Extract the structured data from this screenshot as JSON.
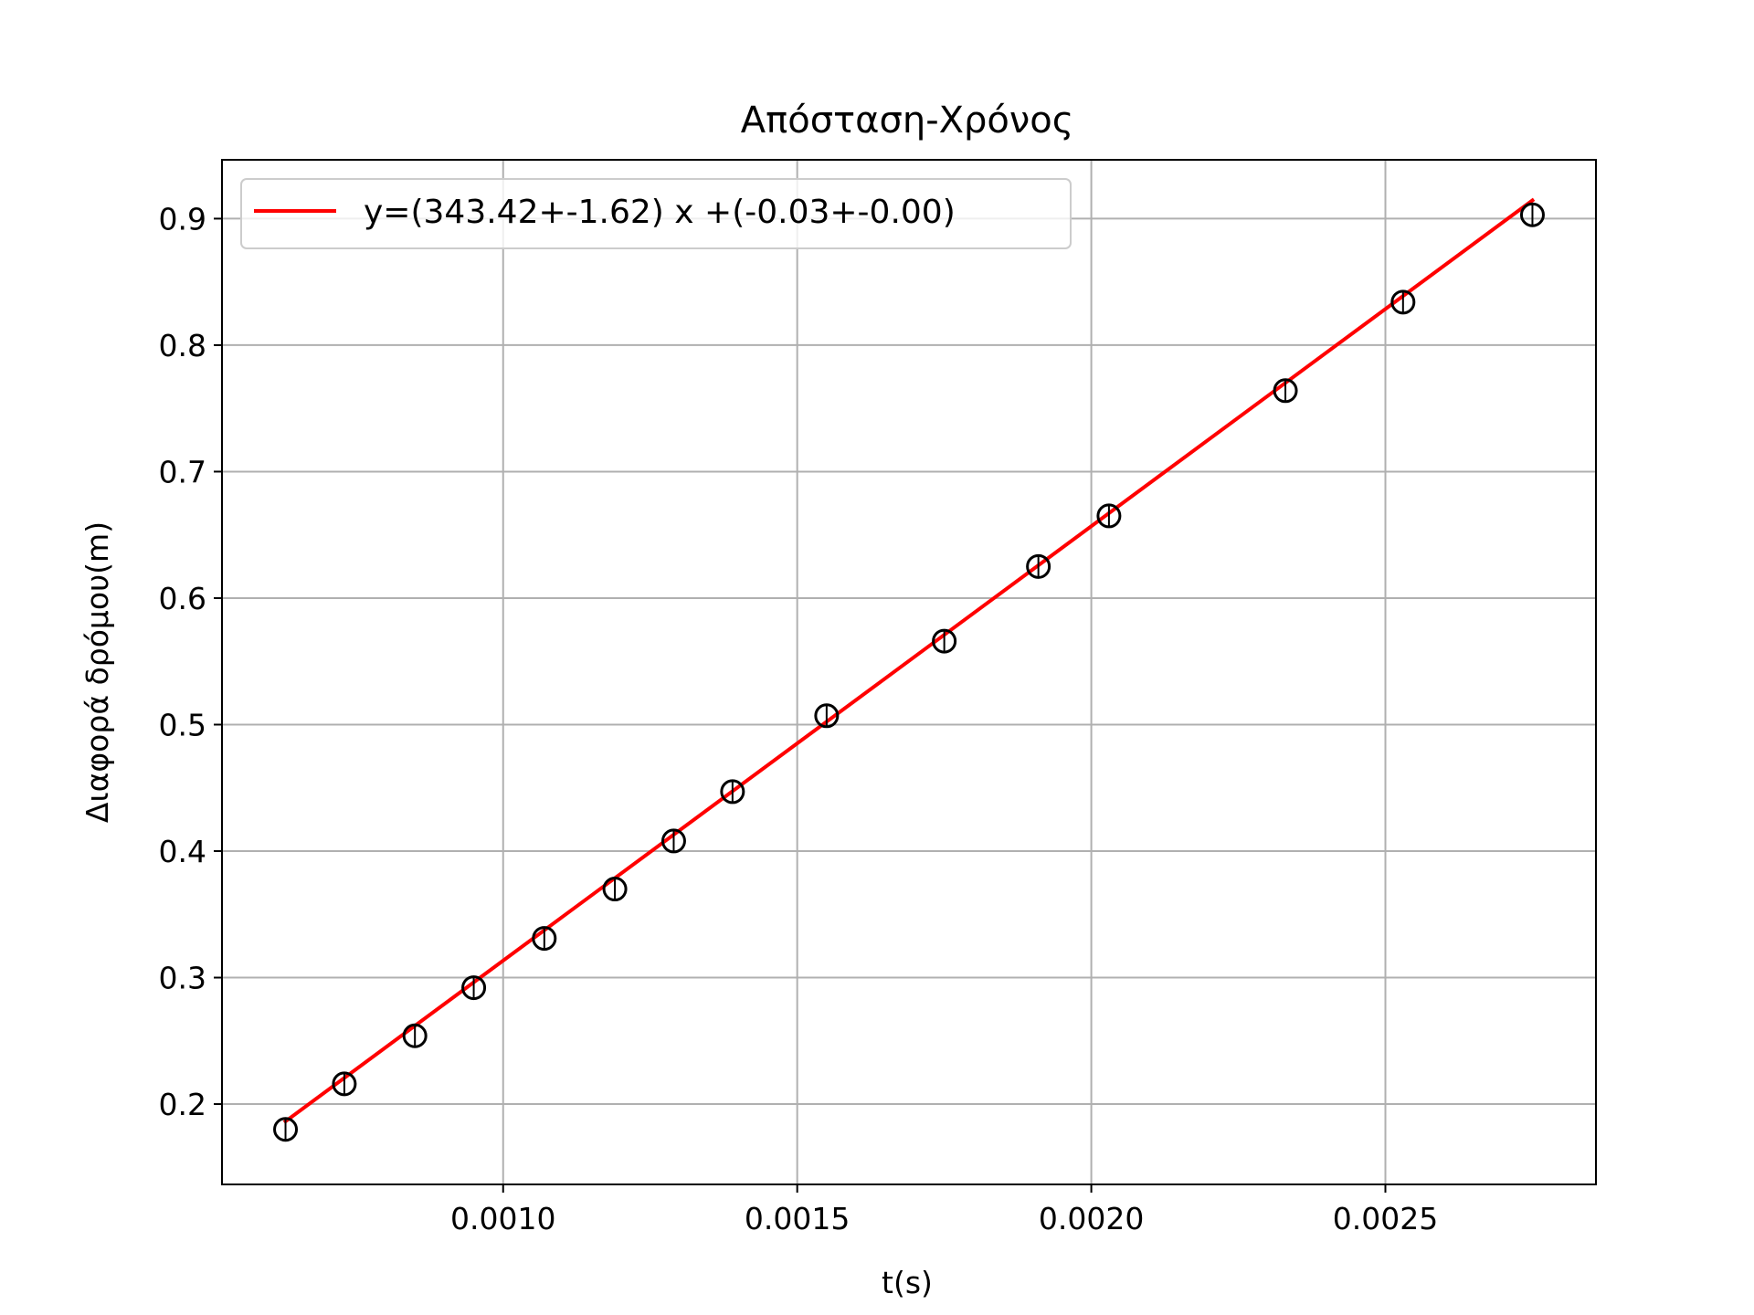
{
  "chart_data": {
    "type": "scatter",
    "title": "Απόσταση-Χρόνος",
    "xlabel": "t(s)",
    "ylabel": "Διαφορά δρόμου(m)",
    "xlim": [
      0.000522,
      0.002858
    ],
    "ylim": [
      0.1365,
      0.9465
    ],
    "grid": true,
    "x_ticks": [
      0.001,
      0.0015,
      0.002,
      0.0025
    ],
    "x_tick_labels": [
      "0.0010",
      "0.0015",
      "0.0020",
      "0.0025"
    ],
    "y_ticks": [
      0.2,
      0.3,
      0.4,
      0.5,
      0.6,
      0.7,
      0.8,
      0.9
    ],
    "y_tick_labels": [
      "0.2",
      "0.3",
      "0.4",
      "0.5",
      "0.6",
      "0.7",
      "0.8",
      "0.9"
    ],
    "legend_position": "upper-left",
    "series": [
      {
        "kind": "points",
        "marker": "open-circle",
        "color": "#000000",
        "x": [
          0.00063,
          0.00073,
          0.00085,
          0.00095,
          0.00107,
          0.00119,
          0.00129,
          0.00139,
          0.00155,
          0.00175,
          0.00191,
          0.00203,
          0.00233,
          0.00253,
          0.00275
        ],
        "y": [
          0.18,
          0.216,
          0.254,
          0.292,
          0.331,
          0.37,
          0.408,
          0.447,
          0.507,
          0.566,
          0.625,
          0.665,
          0.764,
          0.834,
          0.903
        ]
      },
      {
        "kind": "line",
        "name": "y=(343.42+-1.62) x +(-0.03+-0.00)",
        "color": "#ff0000",
        "slope": 343.42,
        "intercept": -0.03,
        "x": [
          0.00063,
          0.00275
        ]
      }
    ]
  }
}
